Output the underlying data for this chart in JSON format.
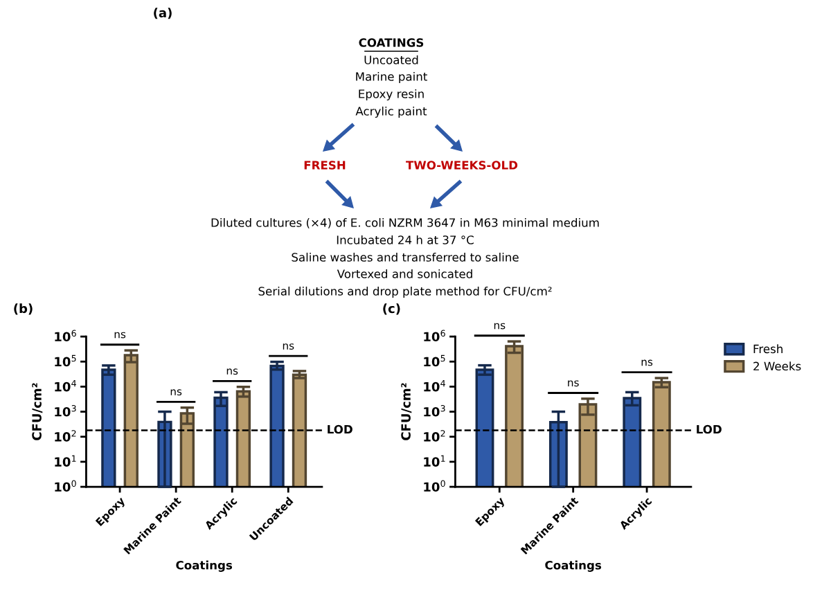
{
  "chart_data": [
    {
      "type": "other",
      "title": "(a)",
      "annotations": [
        "COATINGS",
        "Uncoated",
        "Marine paint",
        "Epoxy resin",
        "Acrylic paint",
        "FRESH",
        "TWO-WEEKS-OLD",
        "Diluted cultures (×4) of E. coli NZRM 3647 in M63 minimal medium",
        "Incubated 24 h at 37 °C",
        "Saline washes and transferred to saline",
        "Vortexed and sonicated",
        "Serial dilutions and drop plate method for CFU/cm²"
      ]
    },
    {
      "type": "bar",
      "title": "(b)",
      "xlabel": "Coatings",
      "ylabel": "CFU/cm²",
      "log": true,
      "grid": false,
      "categories": [
        "Epoxy",
        "Marine Paint",
        "Acrylic",
        "Uncoated"
      ],
      "ylim": [
        1,
        1000000
      ],
      "yticks": [
        {
          "value": 1,
          "label": "10$^{0}$"
        },
        {
          "value": 10,
          "label": "10$^{1}$"
        },
        {
          "value": 100,
          "label": "10$^{2}$"
        },
        {
          "value": 1000,
          "label": "10$^{3}$"
        },
        {
          "value": 10000,
          "label": "10$^{4}$"
        },
        {
          "value": 100000,
          "label": "10$^{5}$"
        },
        {
          "value": 1000000,
          "label": "10$^{6}$"
        }
      ],
      "series": [
        {
          "color": "#2f5aa8",
          "values": [
            47000,
            390,
            3600,
            67000
          ],
          "errors": [
            [
              30000,
              70000
            ],
            [
              1,
              1000
            ],
            [
              1700,
              6000
            ],
            [
              48000,
              98000
            ]
          ]
        },
        {
          "color": "#b89c6c",
          "values": [
            180000,
            860,
            6500,
            30000
          ],
          "errors": [
            [
              95000,
              280000
            ],
            [
              330,
              1450
            ],
            [
              4000,
              9800
            ],
            [
              22000,
              42000
            ]
          ]
        }
      ],
      "ref_lines": [
        {
          "axis": "y",
          "value": 180,
          "label": "LOD",
          "line_style": "dashed",
          "color": "#000000"
        }
      ],
      "annotations": [
        "ns",
        "ns",
        "ns",
        "ns"
      ]
    },
    {
      "type": "bar",
      "title": "(c)",
      "xlabel": "Coatings",
      "ylabel": "CFU/cm²",
      "log": true,
      "grid": false,
      "legend": "top right",
      "categories": [
        "Epoxy",
        "Marine Paint",
        "Acrylic"
      ],
      "ylim": [
        1,
        1000000
      ],
      "yticks": [
        {
          "value": 1,
          "label": "10$^{0}$"
        },
        {
          "value": 10,
          "label": "10$^{1}$"
        },
        {
          "value": 100,
          "label": "10$^{2}$"
        },
        {
          "value": 1000,
          "label": "10$^{3}$"
        },
        {
          "value": 10000,
          "label": "10$^{4}$"
        },
        {
          "value": 100000,
          "label": "10$^{5}$"
        },
        {
          "value": 1000000,
          "label": "10$^{6}$"
        }
      ],
      "series": [
        {
          "name": "Fresh",
          "color": "#2f5aa8",
          "values": [
            47000,
            380,
            3500
          ],
          "errors": [
            [
              30000,
              71000
            ],
            [
              1,
              1000
            ],
            [
              1800,
              6000
            ]
          ]
        },
        {
          "name": "2 Weeks",
          "color": "#b89c6c",
          "values": [
            410000,
            1950,
            15000
          ],
          "errors": [
            [
              225000,
              640000
            ],
            [
              760,
              3300
            ],
            [
              9500,
              22000
            ]
          ]
        }
      ],
      "ref_lines": [
        {
          "axis": "y",
          "value": 180,
          "label": "LOD",
          "line_style": "dashed",
          "color": "#000000"
        }
      ],
      "annotations": [
        "ns",
        "ns",
        "ns"
      ]
    }
  ]
}
